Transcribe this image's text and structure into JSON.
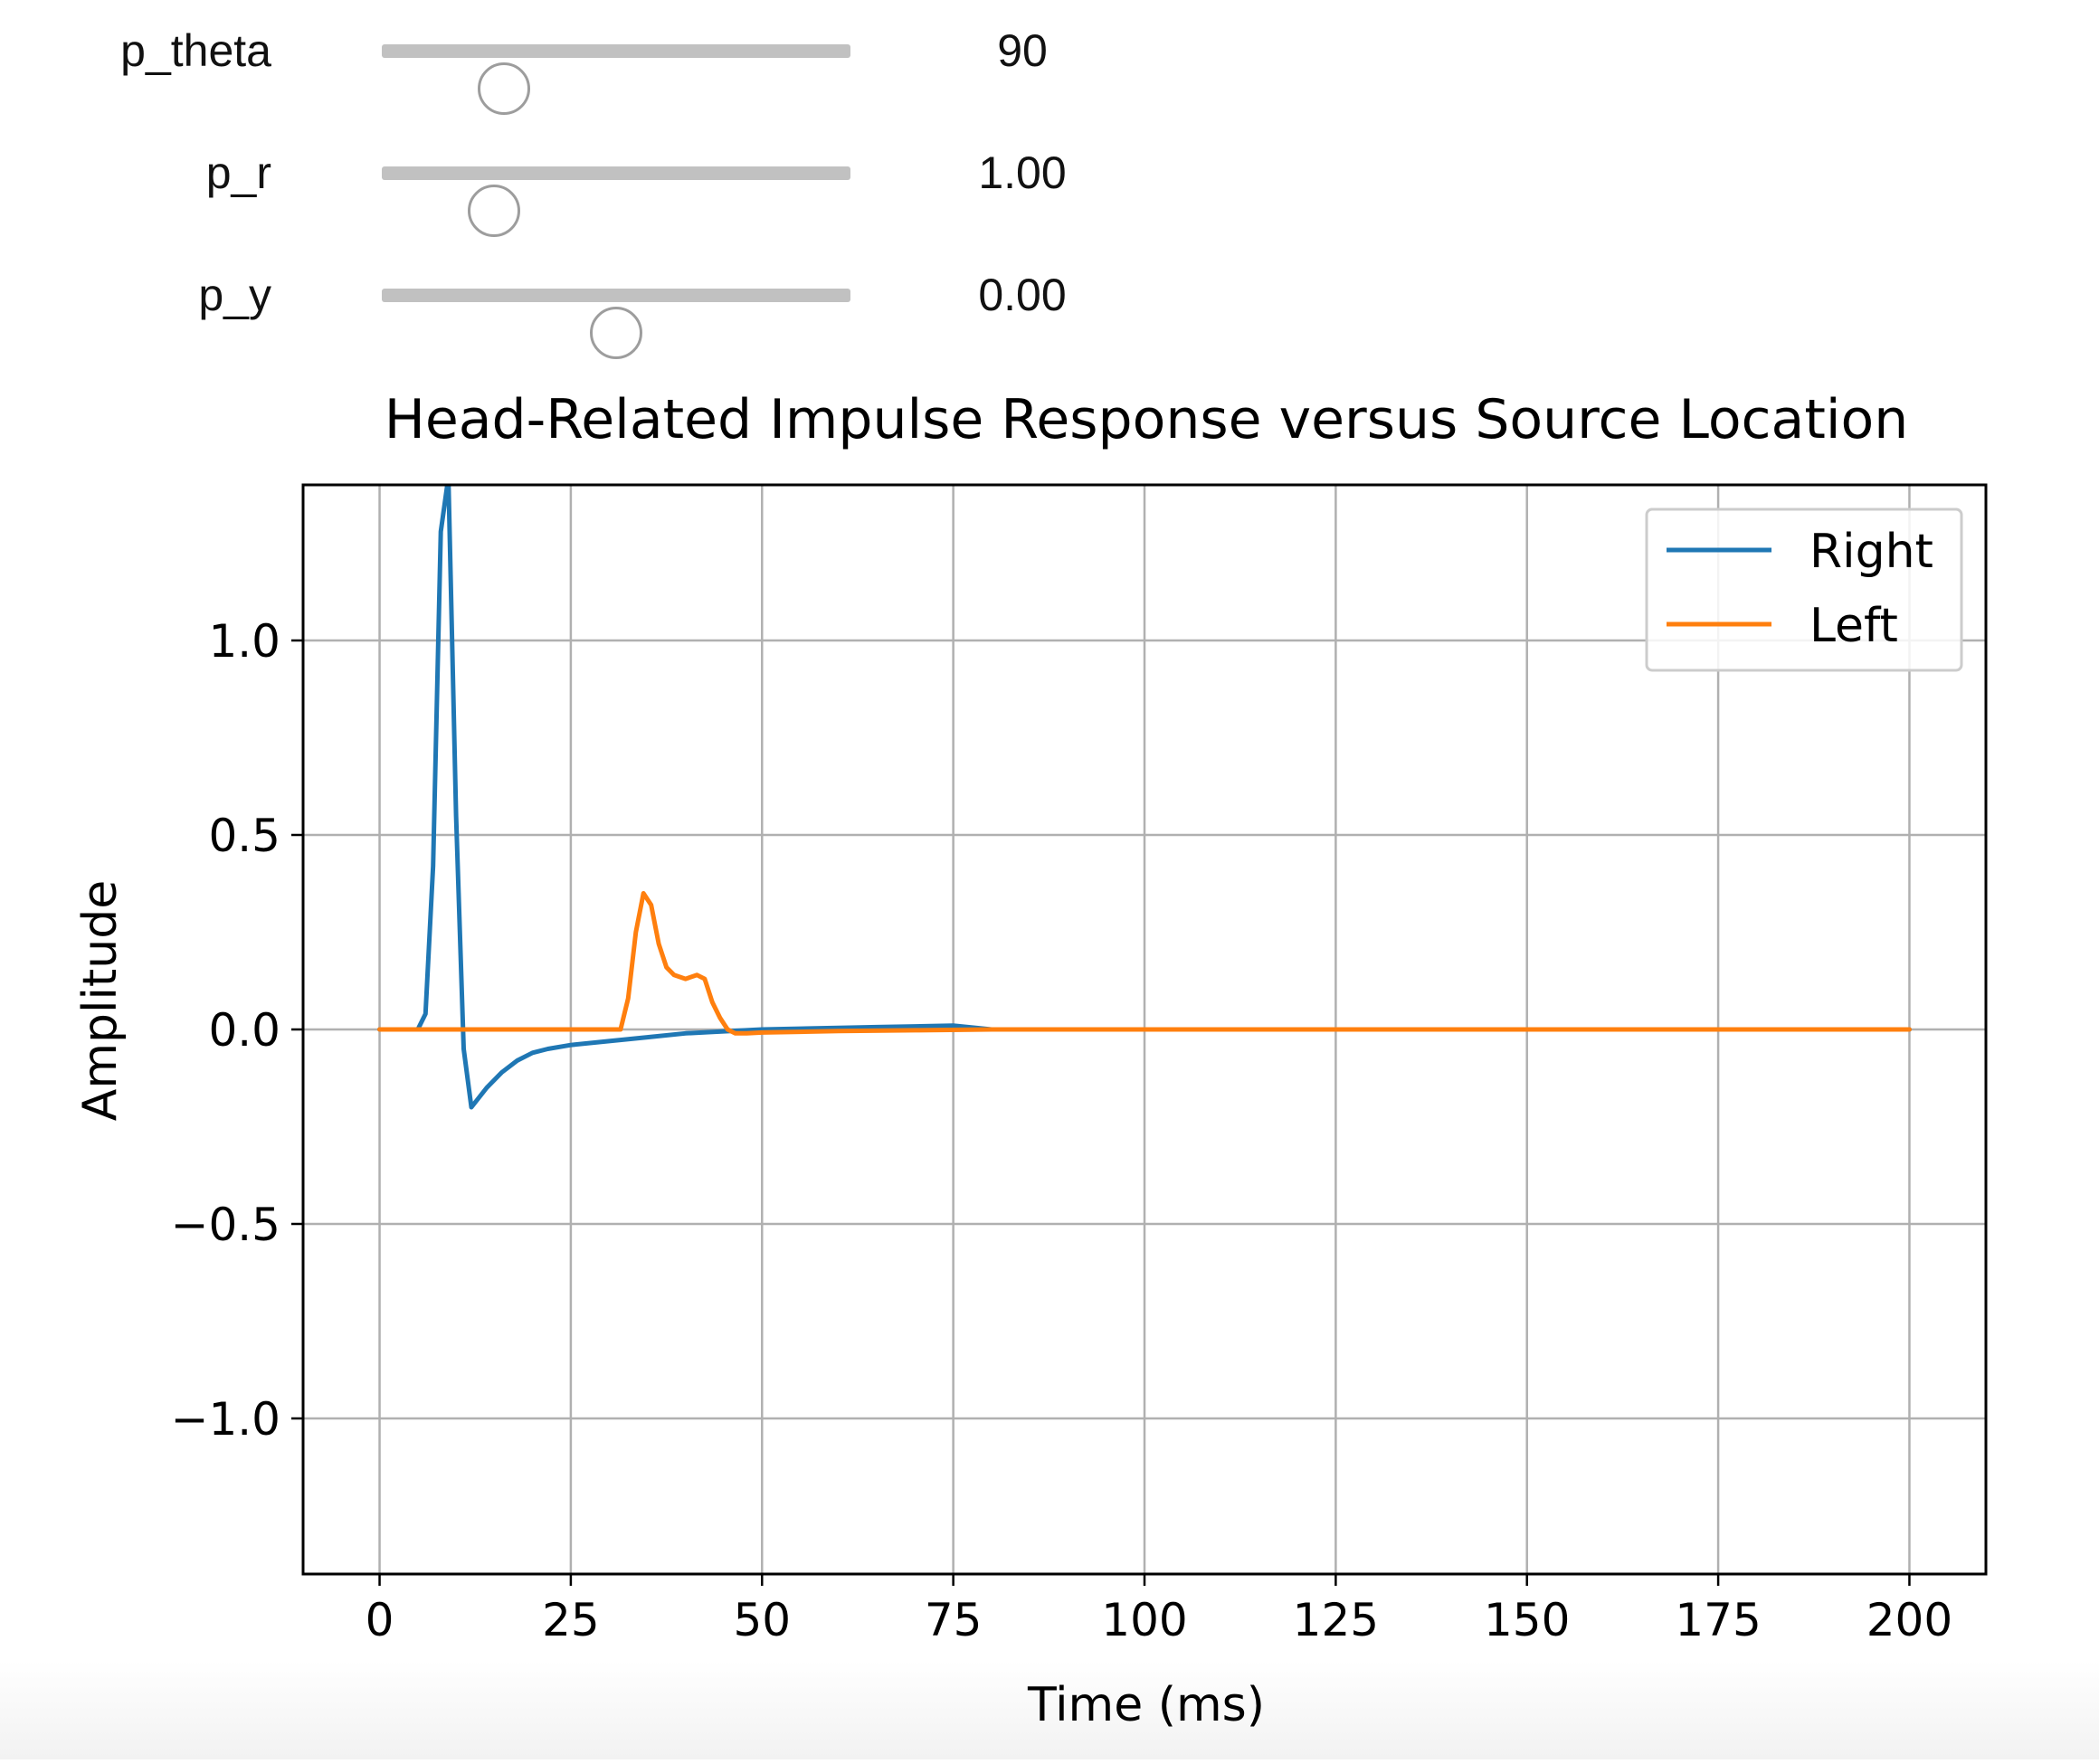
{
  "sliders": [
    {
      "label": "p_theta",
      "value": "90",
      "fraction": 0.26
    },
    {
      "label": "p_r",
      "value": "1.00",
      "fraction": 0.24
    },
    {
      "label": "p_y",
      "value": "0.00",
      "fraction": 0.5
    }
  ],
  "colors": {
    "right": "#1f77b4",
    "left": "#ff7f0e",
    "grid": "#b0b0b0",
    "slider_track": "#c1c1c1"
  },
  "chart_data": {
    "type": "line",
    "title": "Head-Related Impulse Response versus Source Location",
    "xlabel": "Time (ms)",
    "ylabel": "Amplitude",
    "xlim": [
      -10,
      210
    ],
    "ylim": [
      -1.4,
      1.4
    ],
    "xticks": [
      0,
      25,
      50,
      75,
      100,
      125,
      150,
      175,
      200
    ],
    "xtick_labels": [
      "0",
      "25",
      "50",
      "75",
      "100",
      "125",
      "150",
      "175",
      "200"
    ],
    "yticks": [
      -1.0,
      -0.5,
      0.0,
      0.5,
      1.0
    ],
    "ytick_labels": [
      "−1.0",
      "−0.5",
      "0.0",
      "0.5",
      "1.0"
    ],
    "grid": true,
    "legend_position": "top-right",
    "series": [
      {
        "name": "Right",
        "color": "#1f77b4",
        "x": [
          0,
          5,
          6,
          7,
          8,
          9,
          10,
          11,
          12,
          14,
          16,
          18,
          20,
          22,
          25,
          30,
          35,
          40,
          45,
          50,
          55,
          60,
          65,
          70,
          75,
          80,
          90,
          100,
          125,
          150,
          175,
          200
        ],
        "y": [
          0.0,
          0.0,
          0.04,
          0.42,
          1.28,
          1.42,
          0.55,
          -0.05,
          -0.2,
          -0.15,
          -0.11,
          -0.08,
          -0.06,
          -0.05,
          -0.04,
          -0.03,
          -0.02,
          -0.01,
          -0.005,
          0.0,
          0.002,
          0.004,
          0.006,
          0.008,
          0.01,
          0.0,
          0.0,
          0.0,
          0.0,
          0.0,
          0.0,
          0.0
        ]
      },
      {
        "name": "Left",
        "color": "#ff7f0e",
        "x": [
          0,
          10,
          20,
          30,
          31.5,
          32.5,
          33.5,
          34.5,
          35.5,
          36.5,
          37.5,
          38.5,
          40,
          41.5,
          42.5,
          43.5,
          44.5,
          45.5,
          46.5,
          48,
          50,
          55,
          60,
          70,
          80,
          100,
          125,
          150,
          175,
          200
        ],
        "y": [
          0.0,
          0.0,
          0.0,
          0.0,
          0.0,
          0.08,
          0.25,
          0.35,
          0.32,
          0.22,
          0.16,
          0.14,
          0.13,
          0.14,
          0.13,
          0.07,
          0.03,
          0.0,
          -0.01,
          -0.01,
          -0.008,
          -0.006,
          -0.004,
          -0.002,
          0.0,
          0.0,
          0.0,
          0.0,
          0.0,
          0.0
        ]
      }
    ]
  }
}
